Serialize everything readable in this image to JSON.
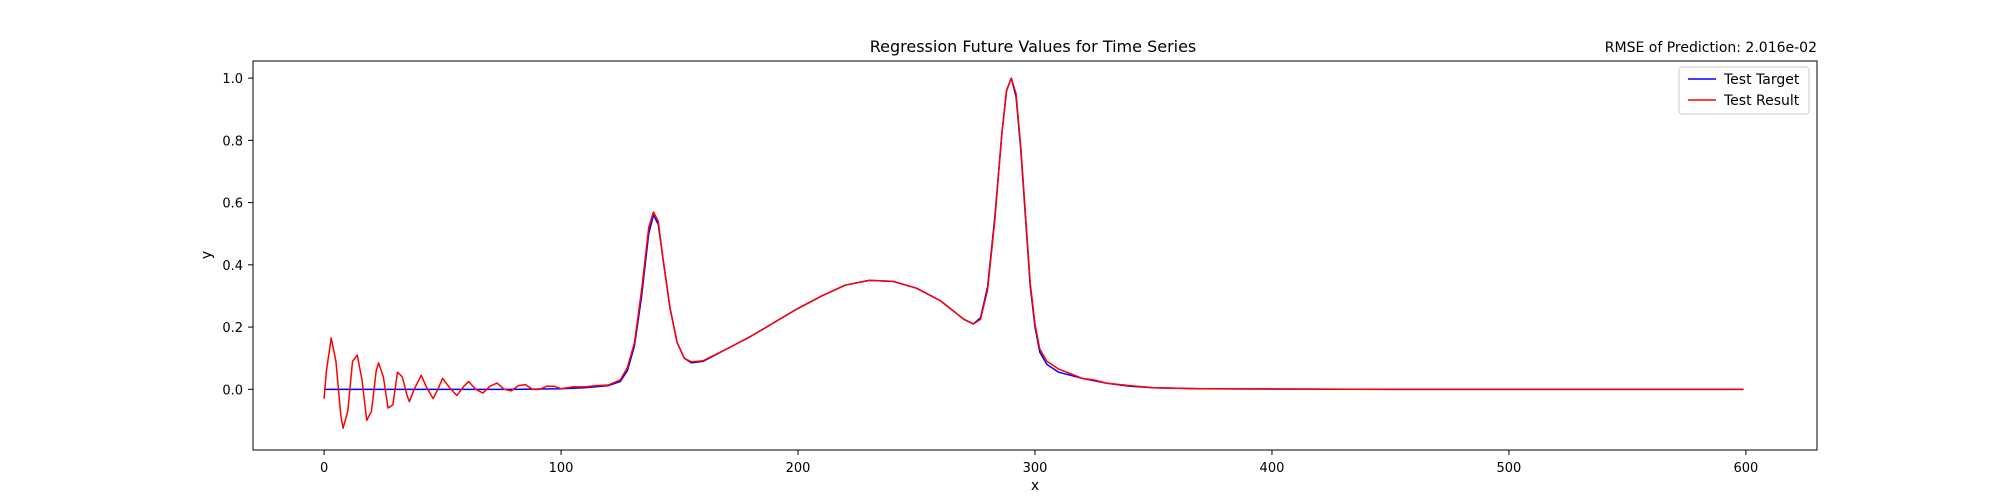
{
  "chart_data": {
    "type": "line",
    "title": "Regression Future Values for Time Series",
    "annotation": "RMSE of Prediction: 2.016e-02",
    "xlabel": "x",
    "ylabel": "y",
    "xlim": [
      -30,
      630
    ],
    "ylim": [
      -0.195,
      1.055
    ],
    "x_ticks": [
      0,
      100,
      200,
      300,
      400,
      500,
      600
    ],
    "y_ticks": [
      0.0,
      0.2,
      0.4,
      0.6,
      0.8,
      1.0
    ],
    "x_tick_labels": [
      "0",
      "100",
      "200",
      "300",
      "400",
      "500",
      "600"
    ],
    "y_tick_labels": [
      "0.0",
      "0.2",
      "0.4",
      "0.6",
      "0.8",
      "1.0"
    ],
    "grid": false,
    "legend_position": "top-right",
    "x_range": [
      0,
      599
    ],
    "series": [
      {
        "name": "Test Target",
        "color": "#0000ff",
        "points": [
          [
            0,
            0.0
          ],
          [
            20,
            0.0
          ],
          [
            40,
            0.0
          ],
          [
            60,
            0.0
          ],
          [
            80,
            0.0
          ],
          [
            100,
            0.002
          ],
          [
            110,
            0.005
          ],
          [
            120,
            0.012
          ],
          [
            125,
            0.025
          ],
          [
            128,
            0.06
          ],
          [
            131,
            0.14
          ],
          [
            134,
            0.3
          ],
          [
            137,
            0.5
          ],
          [
            139,
            0.56
          ],
          [
            141,
            0.53
          ],
          [
            143,
            0.42
          ],
          [
            146,
            0.26
          ],
          [
            149,
            0.15
          ],
          [
            152,
            0.1
          ],
          [
            155,
            0.085
          ],
          [
            160,
            0.09
          ],
          [
            170,
            0.13
          ],
          [
            180,
            0.17
          ],
          [
            190,
            0.215
          ],
          [
            200,
            0.26
          ],
          [
            210,
            0.3
          ],
          [
            220,
            0.335
          ],
          [
            230,
            0.35
          ],
          [
            240,
            0.347
          ],
          [
            250,
            0.325
          ],
          [
            260,
            0.285
          ],
          [
            265,
            0.255
          ],
          [
            270,
            0.225
          ],
          [
            274,
            0.21
          ],
          [
            277,
            0.23
          ],
          [
            280,
            0.33
          ],
          [
            283,
            0.55
          ],
          [
            286,
            0.82
          ],
          [
            288,
            0.96
          ],
          [
            290,
            1.0
          ],
          [
            292,
            0.94
          ],
          [
            294,
            0.77
          ],
          [
            296,
            0.55
          ],
          [
            298,
            0.33
          ],
          [
            300,
            0.2
          ],
          [
            302,
            0.12
          ],
          [
            305,
            0.08
          ],
          [
            310,
            0.055
          ],
          [
            320,
            0.035
          ],
          [
            330,
            0.02
          ],
          [
            340,
            0.01
          ],
          [
            350,
            0.005
          ],
          [
            370,
            0.002
          ],
          [
            400,
            0.001
          ],
          [
            450,
            0.0
          ],
          [
            500,
            0.0
          ],
          [
            550,
            0.0
          ],
          [
            599,
            0.0
          ]
        ]
      },
      {
        "name": "Test Result",
        "color": "#ff0000",
        "points": [
          [
            0,
            -0.03
          ],
          [
            1,
            0.06
          ],
          [
            3,
            0.165
          ],
          [
            5,
            0.09
          ],
          [
            7,
            -0.08
          ],
          [
            8,
            -0.125
          ],
          [
            10,
            -0.07
          ],
          [
            12,
            0.09
          ],
          [
            14,
            0.11
          ],
          [
            16,
            0.03
          ],
          [
            18,
            -0.1
          ],
          [
            20,
            -0.07
          ],
          [
            22,
            0.06
          ],
          [
            23,
            0.085
          ],
          [
            25,
            0.04
          ],
          [
            27,
            -0.06
          ],
          [
            29,
            -0.05
          ],
          [
            31,
            0.055
          ],
          [
            33,
            0.04
          ],
          [
            35,
            -0.02
          ],
          [
            36,
            -0.04
          ],
          [
            38,
            0.0
          ],
          [
            41,
            0.045
          ],
          [
            43,
            0.01
          ],
          [
            46,
            -0.03
          ],
          [
            48,
            0.0
          ],
          [
            50,
            0.035
          ],
          [
            53,
            0.005
          ],
          [
            56,
            -0.02
          ],
          [
            59,
            0.01
          ],
          [
            61,
            0.025
          ],
          [
            64,
            0.0
          ],
          [
            67,
            -0.012
          ],
          [
            70,
            0.01
          ],
          [
            73,
            0.02
          ],
          [
            76,
            0.0
          ],
          [
            79,
            -0.005
          ],
          [
            82,
            0.012
          ],
          [
            85,
            0.015
          ],
          [
            88,
            0.0
          ],
          [
            91,
            0.0
          ],
          [
            94,
            0.01
          ],
          [
            97,
            0.01
          ],
          [
            100,
            0.002
          ],
          [
            105,
            0.008
          ],
          [
            110,
            0.008
          ],
          [
            115,
            0.012
          ],
          [
            120,
            0.014
          ],
          [
            125,
            0.03
          ],
          [
            128,
            0.07
          ],
          [
            131,
            0.15
          ],
          [
            134,
            0.32
          ],
          [
            137,
            0.52
          ],
          [
            139,
            0.57
          ],
          [
            141,
            0.54
          ],
          [
            143,
            0.42
          ],
          [
            146,
            0.26
          ],
          [
            149,
            0.15
          ],
          [
            152,
            0.1
          ],
          [
            155,
            0.088
          ],
          [
            160,
            0.092
          ],
          [
            170,
            0.13
          ],
          [
            180,
            0.17
          ],
          [
            190,
            0.215
          ],
          [
            200,
            0.26
          ],
          [
            210,
            0.3
          ],
          [
            220,
            0.335
          ],
          [
            230,
            0.35
          ],
          [
            240,
            0.347
          ],
          [
            250,
            0.325
          ],
          [
            260,
            0.285
          ],
          [
            265,
            0.255
          ],
          [
            270,
            0.225
          ],
          [
            274,
            0.21
          ],
          [
            277,
            0.225
          ],
          [
            280,
            0.32
          ],
          [
            283,
            0.54
          ],
          [
            286,
            0.82
          ],
          [
            288,
            0.96
          ],
          [
            290,
            1.0
          ],
          [
            292,
            0.95
          ],
          [
            294,
            0.78
          ],
          [
            296,
            0.56
          ],
          [
            298,
            0.34
          ],
          [
            300,
            0.21
          ],
          [
            302,
            0.13
          ],
          [
            305,
            0.09
          ],
          [
            310,
            0.065
          ],
          [
            315,
            0.05
          ],
          [
            320,
            0.035
          ],
          [
            325,
            0.03
          ],
          [
            330,
            0.02
          ],
          [
            340,
            0.012
          ],
          [
            350,
            0.005
          ],
          [
            370,
            0.002
          ],
          [
            400,
            0.001
          ],
          [
            450,
            0.0
          ],
          [
            500,
            0.0
          ],
          [
            550,
            0.0
          ],
          [
            599,
            0.0
          ]
        ]
      }
    ]
  }
}
